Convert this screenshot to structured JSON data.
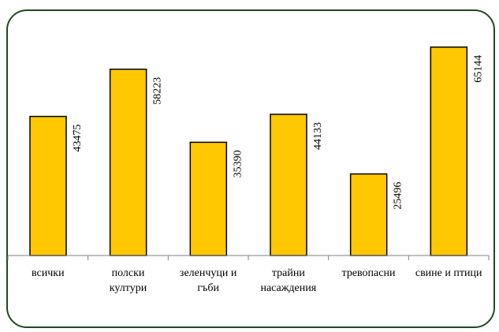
{
  "chart_data": {
    "type": "bar",
    "categories": [
      [
        "всички"
      ],
      [
        "полски",
        "култури"
      ],
      [
        "зеленчуци и",
        "гъби"
      ],
      [
        "трайни",
        "насаждения"
      ],
      [
        "тревопасни"
      ],
      [
        "свине и птици"
      ]
    ],
    "values": [
      43475,
      58223,
      35390,
      44133,
      25496,
      65144
    ],
    "data_labels": [
      "43475",
      "58223",
      "35390",
      "44133",
      "25496",
      "65144"
    ],
    "ylim": [
      0,
      70000
    ],
    "grid": false,
    "legend": "none",
    "bar_color": "#ffc800",
    "bar_edge_color": "#000000",
    "frame_color": "#1f4a1f"
  }
}
